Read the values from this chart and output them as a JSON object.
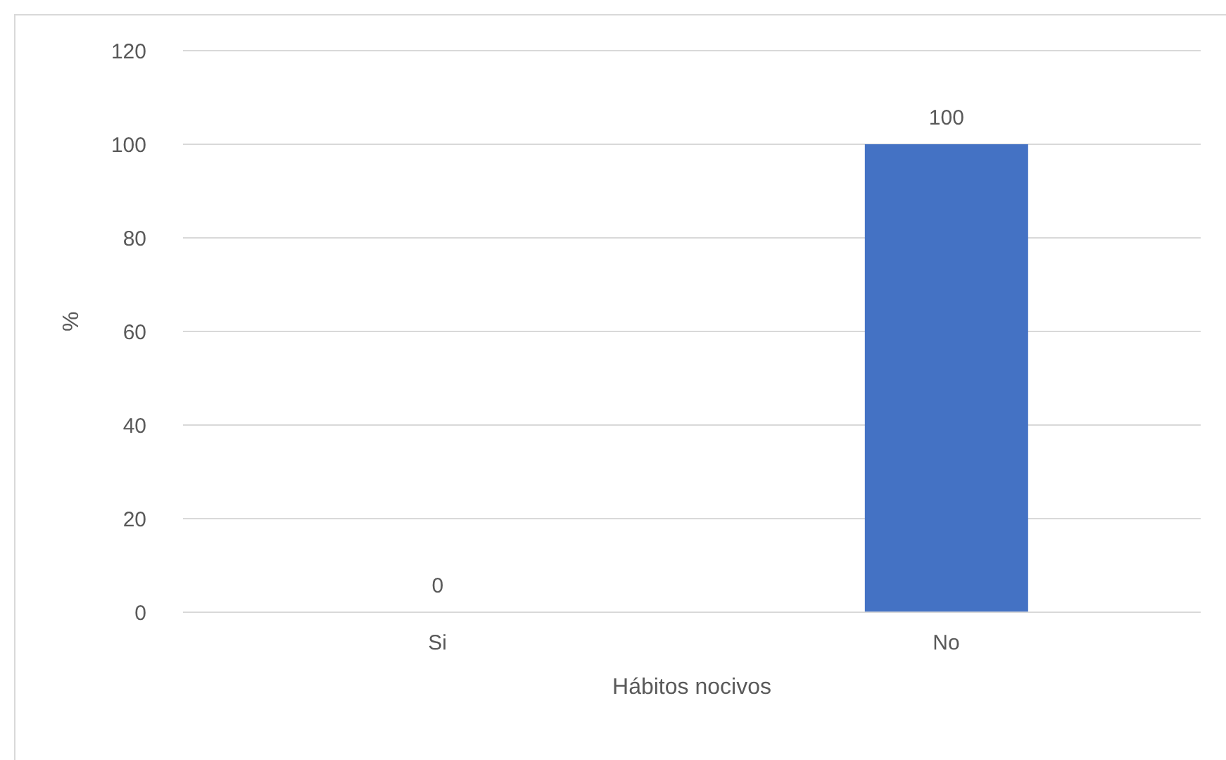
{
  "chart_data": {
    "type": "bar",
    "xlabel": "Hábitos nocivos",
    "ylabel": "%",
    "categories": [
      "Si",
      "No"
    ],
    "values": [
      0,
      100
    ],
    "color": "#4472c4",
    "ylim": [
      0,
      120
    ],
    "yticks": [
      0,
      20,
      40,
      60,
      80,
      100,
      120
    ],
    "grid": "y",
    "data_labels": true
  }
}
